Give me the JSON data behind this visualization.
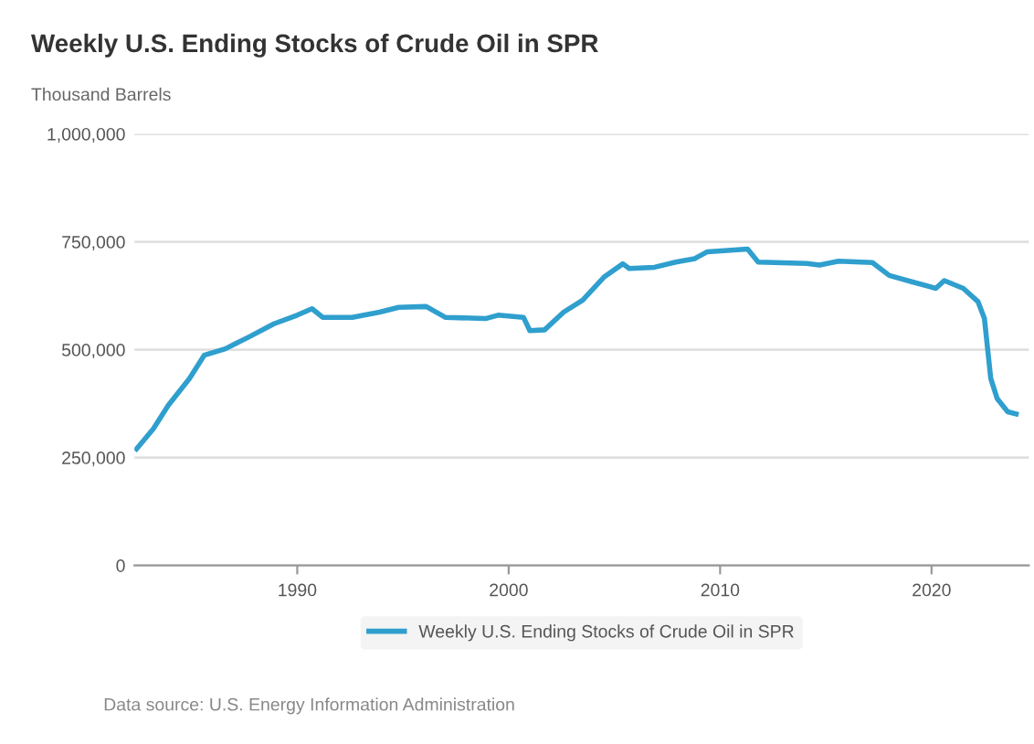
{
  "chart_data": {
    "type": "line",
    "title": "Weekly U.S. Ending Stocks of Crude Oil in SPR",
    "ylabel": "Thousand Barrels",
    "x": [
      1982.4,
      1983.2,
      1983.9,
      1984.9,
      1985.6,
      1986.6,
      1987.7,
      1988.9,
      1990.0,
      1990.7,
      1991.2,
      1992.6,
      1993.9,
      1994.8,
      1996.1,
      1997.0,
      1998.9,
      1999.5,
      2000.7,
      2001.0,
      2001.7,
      2002.6,
      2003.5,
      2004.5,
      2005.4,
      2005.7,
      2006.9,
      2007.9,
      2008.8,
      2009.4,
      2011.3,
      2011.8,
      2014.1,
      2014.7,
      2015.6,
      2017.2,
      2018.0,
      2019.1,
      2020.2,
      2020.6,
      2021.5,
      2022.2,
      2022.5,
      2022.8,
      2023.1,
      2023.6,
      2024.0
    ],
    "series": [
      {
        "name": "Weekly U.S. Ending Stocks of Crude Oil in SPR",
        "color": "#2f9fce",
        "values": [
          270000,
          317000,
          371000,
          433000,
          487000,
          502000,
          529000,
          560000,
          580000,
          595000,
          575000,
          575000,
          587000,
          598000,
          600000,
          575000,
          572000,
          580000,
          575000,
          544000,
          546000,
          587000,
          615000,
          668000,
          699000,
          688000,
          691000,
          703000,
          711000,
          727000,
          733000,
          703000,
          700000,
          696000,
          705000,
          702000,
          672000,
          657000,
          642000,
          660000,
          642000,
          611000,
          572000,
          433000,
          387000,
          356000,
          351000
        ]
      }
    ],
    "xlim": [
      1982.3,
      2024.6
    ],
    "xticks": [
      1990,
      2000,
      2010,
      2020
    ],
    "ylim": [
      0,
      1000000
    ],
    "yticks": [
      0,
      {
        "value": 250000,
        "label": "250,000"
      },
      {
        "value": 500000,
        "label": "500,000"
      },
      {
        "value": 750000,
        "label": "750,000"
      },
      {
        "value": 1000000,
        "label": "1,000,000"
      }
    ],
    "grid": "y",
    "legend": "bottom",
    "marker": "none",
    "line_style": "solid",
    "annotations": [
      "Data source: U.S. Energy Information Administration"
    ]
  }
}
